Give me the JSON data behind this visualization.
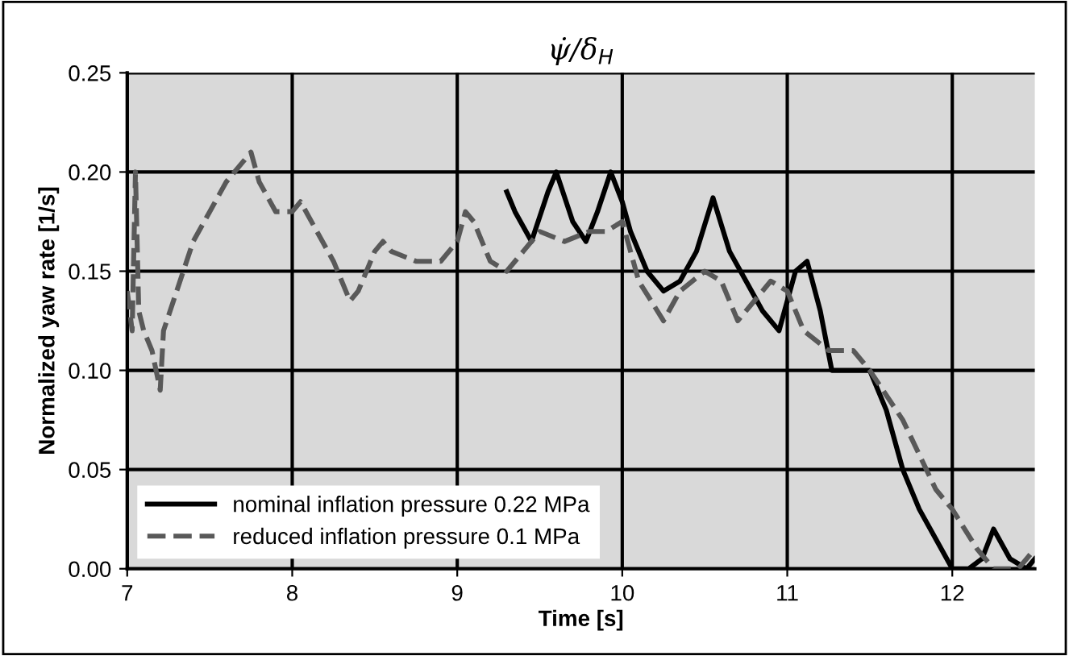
{
  "chart_data": {
    "type": "line",
    "title": "ψ̇/δ$_{H}$",
    "xlabel": "Time [s]",
    "ylabel": "Normalized yaw rate [1/s]",
    "xlim": [
      7,
      12.5
    ],
    "xticks": [
      7,
      8,
      9,
      10,
      11,
      12
    ],
    "ylim": [
      0,
      0.25
    ],
    "yticks": [
      {
        "value": 0,
        "label": "0.00"
      },
      {
        "value": 0.05,
        "label": "0.05"
      },
      {
        "value": 0.1,
        "label": "0.10"
      },
      {
        "value": 0.15,
        "label": "0.15"
      },
      {
        "value": 0.2,
        "label": "0.20"
      },
      {
        "value": 0.25,
        "label": "0.25"
      }
    ],
    "grid": true,
    "legend": "bottom left",
    "series": [
      {
        "name": "nominal inflation pressure 0.22 MPa",
        "color": "#000000",
        "line_style": "solid",
        "x": [
          9.3,
          9.35,
          9.45,
          9.55,
          9.6,
          9.7,
          9.78,
          9.85,
          9.93,
          10.0,
          10.05,
          10.15,
          10.25,
          10.35,
          10.45,
          10.55,
          10.65,
          10.75,
          10.85,
          10.95,
          11.05,
          11.12,
          11.2,
          11.27,
          11.4,
          11.5,
          11.6,
          11.7,
          11.8,
          11.9,
          12.0,
          12.1,
          12.18,
          12.25,
          12.35,
          12.45,
          12.5
        ],
        "values": [
          0.19,
          0.18,
          0.165,
          0.19,
          0.2,
          0.175,
          0.165,
          0.18,
          0.2,
          0.185,
          0.17,
          0.15,
          0.14,
          0.145,
          0.16,
          0.187,
          0.16,
          0.145,
          0.13,
          0.12,
          0.15,
          0.155,
          0.13,
          0.1,
          0.1,
          0.1,
          0.08,
          0.05,
          0.03,
          0.015,
          0.0,
          0.0,
          0.005,
          0.02,
          0.005,
          0.0,
          0.005
        ]
      },
      {
        "name": "reduced inflation pressure 0.1 MPa",
        "color": "#595959",
        "line_style": "dashed",
        "x": [
          7.0,
          7.03,
          7.05,
          7.07,
          7.1,
          7.15,
          7.2,
          7.22,
          7.3,
          7.4,
          7.5,
          7.6,
          7.7,
          7.75,
          7.8,
          7.9,
          8.0,
          8.05,
          8.15,
          8.25,
          8.35,
          8.4,
          8.5,
          8.55,
          8.6,
          8.75,
          8.9,
          9.0,
          9.05,
          9.1,
          9.2,
          9.3,
          9.4,
          9.5,
          9.65,
          9.8,
          9.9,
          10.0,
          10.1,
          10.25,
          10.35,
          10.5,
          10.6,
          10.7,
          10.8,
          10.9,
          11.0,
          11.1,
          11.25,
          11.4,
          11.5,
          11.7,
          11.9,
          12.0,
          12.15,
          12.25,
          12.4,
          12.5
        ],
        "values": [
          0.14,
          0.12,
          0.2,
          0.13,
          0.12,
          0.11,
          0.09,
          0.12,
          0.14,
          0.165,
          0.18,
          0.195,
          0.205,
          0.21,
          0.195,
          0.18,
          0.18,
          0.185,
          0.17,
          0.155,
          0.135,
          0.14,
          0.16,
          0.165,
          0.16,
          0.155,
          0.155,
          0.165,
          0.18,
          0.175,
          0.155,
          0.15,
          0.16,
          0.17,
          0.165,
          0.17,
          0.17,
          0.175,
          0.145,
          0.125,
          0.14,
          0.15,
          0.145,
          0.125,
          0.135,
          0.145,
          0.14,
          0.12,
          0.11,
          0.11,
          0.1,
          0.075,
          0.04,
          0.03,
          0.01,
          0.0,
          0.0,
          0.01
        ]
      }
    ]
  }
}
